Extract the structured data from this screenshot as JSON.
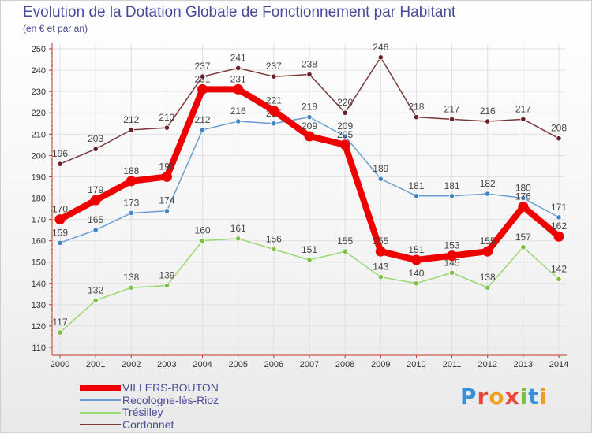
{
  "title": "Evolution de la Dotation Globale de Fonctionnement par Habitant",
  "subtitle": "(en € et par an)",
  "logo": {
    "text": "Proxiti",
    "colors": [
      "#3a8fd8",
      "#e8483b",
      "#f0a020",
      "#e8483b",
      "#7cc040",
      "#3a8fd8",
      "#f0a020"
    ]
  },
  "colors": {
    "axis": "#c0392b",
    "grid": "#e0e0e0",
    "label": "#333333"
  },
  "chart_data": {
    "type": "line",
    "x": [
      2000,
      2001,
      2002,
      2003,
      2004,
      2005,
      2006,
      2007,
      2008,
      2009,
      2010,
      2011,
      2012,
      2013,
      2014
    ],
    "ylim": [
      110,
      250
    ],
    "yticks": [
      110,
      120,
      130,
      140,
      150,
      160,
      170,
      180,
      190,
      200,
      210,
      220,
      230,
      240,
      250
    ],
    "grid": true,
    "legend_position": "bottom-left",
    "series": [
      {
        "name": "VILLERS-BOUTON",
        "color": "#ee0000",
        "point_color": "#ee0000",
        "width": 8,
        "values": [
          170,
          179,
          188,
          190,
          231,
          231,
          221,
          209,
          205,
          155,
          151,
          153,
          155,
          176,
          162
        ],
        "labels": [
          "170",
          "179",
          "188",
          "190",
          "231",
          "231",
          "221",
          "209",
          "205",
          "155",
          "151",
          "153",
          "155",
          "176",
          "162"
        ]
      },
      {
        "name": "Recologne-lès-Rioz",
        "color": "#6a9ed0",
        "point_color": "#3d85c6",
        "width": 1.5,
        "values": [
          159,
          165,
          173,
          174,
          212,
          216,
          215,
          218,
          209,
          189,
          181,
          181,
          182,
          180,
          171
        ],
        "labels": [
          "159",
          "165",
          "173",
          "174",
          "212",
          "216",
          "215",
          "218",
          "209",
          "189",
          "181",
          "181",
          "182",
          "180",
          "171"
        ]
      },
      {
        "name": "Trésilley",
        "color": "#9ad870",
        "point_color": "#7cc040",
        "width": 1.5,
        "values": [
          117,
          132,
          138,
          139,
          160,
          161,
          156,
          151,
          155,
          143,
          140,
          145,
          138,
          157,
          142
        ],
        "labels": [
          "117",
          "132",
          "138",
          "139",
          "160",
          "161",
          "156",
          "151",
          "155",
          "143",
          "140",
          "145",
          "138",
          "157",
          "142"
        ]
      },
      {
        "name": "Cordonnet",
        "color": "#7b3a3a",
        "point_color": "#6b1f2a",
        "width": 1.5,
        "values": [
          196,
          203,
          212,
          213,
          237,
          241,
          237,
          238,
          220,
          246,
          218,
          217,
          216,
          217,
          208
        ],
        "labels": [
          "196",
          "203",
          "212",
          "213",
          "237",
          "241",
          "237",
          "238",
          "220",
          "246",
          "218",
          "217",
          "216",
          "217",
          "208"
        ]
      }
    ]
  }
}
